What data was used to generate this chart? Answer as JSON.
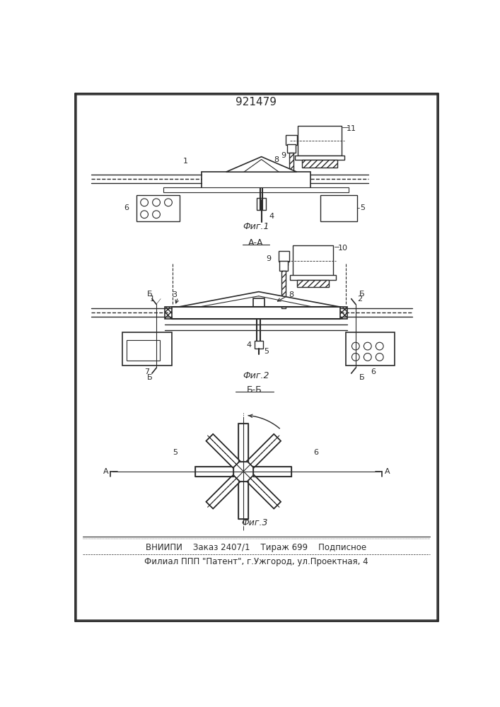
{
  "patent_number": "921479",
  "fig1_label": "Фиг.1",
  "fig2_label": "Фиг.2",
  "fig3_label": "Фиг.3",
  "section_aa": "А-А",
  "section_bb": "Б-Б",
  "footer_line1": "ВНИИПИ    Заказ 2407/1    Тираж 699    Подписное",
  "footer_line2": "Филиал ППП \"Патент\", г.Ужгород, ул.Проектная, 4",
  "bg_color": "#ffffff",
  "line_color": "#2a2a2a"
}
